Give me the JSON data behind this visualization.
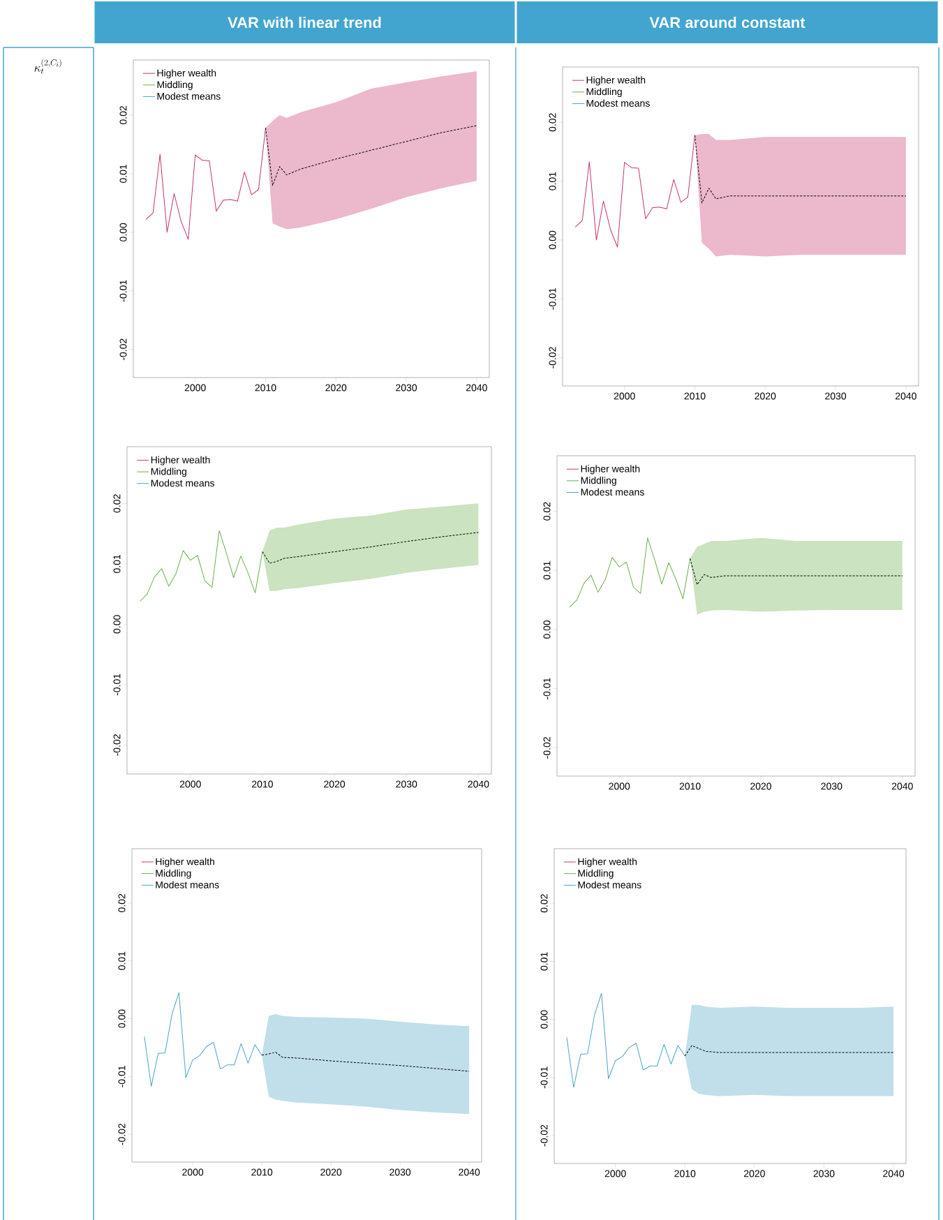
{
  "chart_data": [
    {
      "type": "line",
      "title": "VAR with linear trend",
      "ylabel": "\\kappa_t^{(2,C_i)}",
      "xlim": [
        1991.2,
        2041.8
      ],
      "ylim": [
        -0.0248,
        0.0294
      ],
      "xticks": [
        2000,
        2010,
        2020,
        2030,
        2040
      ],
      "yticks": [
        {
          "value": -0.02,
          "label": "-0.02"
        },
        {
          "value": -0.01,
          "label": "-0.01"
        },
        {
          "value": 0,
          "label": "0.00"
        },
        {
          "value": 0.01,
          "label": "0.01"
        },
        {
          "value": 0.02,
          "label": "0.02"
        }
      ],
      "legend": "top left",
      "series": [
        {
          "name": "Higher wealth",
          "color": "#c8336e",
          "x": [
            1993,
            1994,
            1995,
            1996,
            1997,
            1998,
            1999,
            2000,
            2001,
            2002,
            2003,
            2004,
            2005,
            2006,
            2007,
            2008,
            2009,
            2010,
            2011,
            2012,
            2013,
            2015,
            2020,
            2025,
            2030,
            2035,
            2040
          ],
          "values": [
            0.0022,
            0.0033,
            0.0133,
            0.0,
            0.0066,
            0.0018,
            -0.0012,
            0.0132,
            0.0123,
            0.0122,
            0.0036,
            0.0055,
            0.0056,
            0.0053,
            0.0103,
            0.0064,
            0.0073,
            0.0178,
            null,
            null,
            null,
            null,
            null,
            null,
            null,
            null,
            null
          ],
          "lower": [
            null,
            null,
            null,
            null,
            null,
            null,
            null,
            null,
            null,
            null,
            null,
            null,
            null,
            null,
            null,
            null,
            null,
            0.0178,
            0.0015,
            0.001,
            0.0005,
            0.0008,
            0.0022,
            0.004,
            0.006,
            0.0075,
            0.0088
          ],
          "upper": [
            null,
            null,
            null,
            null,
            null,
            null,
            null,
            null,
            null,
            null,
            null,
            null,
            null,
            null,
            null,
            null,
            null,
            0.0178,
            0.019,
            0.02,
            0.0195,
            0.0205,
            0.0222,
            0.0245,
            0.0256,
            0.0266,
            0.0275
          ]
        },
        {
          "name": "Middling",
          "color": "#6ab04c"
        },
        {
          "name": "Modest means",
          "color": "#4aa3c4"
        },
        {
          "type": "line",
          "color": "#000000",
          "line_style": "dashed",
          "x": [
            2010,
            2011,
            2012,
            2013,
            2015,
            2020,
            2025,
            2030,
            2035,
            2040
          ],
          "values": [
            0.0178,
            0.008,
            0.0112,
            0.0098,
            0.0108,
            0.0125,
            0.014,
            0.0155,
            0.017,
            0.0182
          ]
        }
      ]
    },
    {
      "type": "line",
      "title": "VAR around constant",
      "xlim": [
        1991.2,
        2041.8
      ],
      "ylim": [
        -0.0248,
        0.0294
      ],
      "xticks": [
        2000,
        2010,
        2020,
        2030,
        2040
      ],
      "yticks": [
        {
          "value": -0.02,
          "label": "-0.02"
        },
        {
          "value": -0.01,
          "label": "-0.01"
        },
        {
          "value": 0,
          "label": "0.00"
        },
        {
          "value": 0.01,
          "label": "0.01"
        },
        {
          "value": 0.02,
          "label": "0.02"
        }
      ],
      "legend": "top left",
      "series": [
        {
          "name": "Higher wealth",
          "color": "#c8336e",
          "x": [
            1993,
            1994,
            1995,
            1996,
            1997,
            1998,
            1999,
            2000,
            2001,
            2002,
            2003,
            2004,
            2005,
            2006,
            2007,
            2008,
            2009,
            2010,
            2011,
            2012,
            2013,
            2015,
            2020,
            2025,
            2030,
            2035,
            2040
          ],
          "values": [
            0.0022,
            0.0033,
            0.0133,
            0.0,
            0.0066,
            0.0018,
            -0.0012,
            0.0132,
            0.0123,
            0.0122,
            0.0036,
            0.0055,
            0.0056,
            0.0053,
            0.0103,
            0.0064,
            0.0073,
            0.0178,
            null,
            null,
            null,
            null,
            null,
            null,
            null,
            null,
            null
          ],
          "lower": [
            null,
            null,
            null,
            null,
            null,
            null,
            null,
            null,
            null,
            null,
            null,
            null,
            null,
            null,
            null,
            null,
            null,
            0.0178,
            -0.0005,
            -0.0015,
            -0.0028,
            -0.0025,
            -0.0028,
            -0.0025,
            -0.0025,
            -0.0025,
            -0.0025
          ],
          "upper": [
            null,
            null,
            null,
            null,
            null,
            null,
            null,
            null,
            null,
            null,
            null,
            null,
            null,
            null,
            null,
            null,
            null,
            0.0178,
            0.018,
            0.018,
            0.017,
            0.017,
            0.0175,
            0.0175,
            0.0175,
            0.0175,
            0.0175
          ]
        },
        {
          "name": "Middling",
          "color": "#6ab04c"
        },
        {
          "name": "Modest means",
          "color": "#4aa3c4"
        },
        {
          "type": "line",
          "color": "#000000",
          "line_style": "dashed",
          "x": [
            2010,
            2011,
            2012,
            2013,
            2015,
            2020,
            2025,
            2030,
            2035,
            2040
          ],
          "values": [
            0.0178,
            0.0063,
            0.0088,
            0.007,
            0.0075,
            0.0075,
            0.0075,
            0.0075,
            0.0075,
            0.0075
          ]
        }
      ]
    },
    {
      "type": "line",
      "xlim": [
        1991.2,
        2041.8
      ],
      "ylim": [
        -0.0248,
        0.0294
      ],
      "xticks": [
        2000,
        2010,
        2020,
        2030,
        2040
      ],
      "yticks": [
        {
          "value": -0.02,
          "label": "-0.02"
        },
        {
          "value": -0.01,
          "label": "-0.01"
        },
        {
          "value": 0,
          "label": "0.00"
        },
        {
          "value": 0.01,
          "label": "0.01"
        },
        {
          "value": 0.02,
          "label": "0.02"
        }
      ],
      "legend": "top left",
      "series": [
        {
          "name": "Higher wealth",
          "color": "#c8336e"
        },
        {
          "name": "Middling",
          "color": "#6ab04c",
          "x": [
            1993,
            1994,
            1995,
            1996,
            1997,
            1998,
            1999,
            2000,
            2001,
            2002,
            2003,
            2004,
            2005,
            2006,
            2007,
            2008,
            2009,
            2010,
            2011,
            2012,
            2013,
            2015,
            2020,
            2025,
            2030,
            2035,
            2040
          ],
          "values": [
            0.0038,
            0.005,
            0.0078,
            0.0092,
            0.0063,
            0.0084,
            0.0122,
            0.0106,
            0.0114,
            0.0072,
            0.0061,
            0.0155,
            0.0118,
            0.0077,
            0.0113,
            0.0085,
            0.0052,
            0.012,
            null,
            null,
            null,
            null,
            null,
            null,
            null,
            null,
            null
          ],
          "lower": [
            null,
            null,
            null,
            null,
            null,
            null,
            null,
            null,
            null,
            null,
            null,
            null,
            null,
            null,
            null,
            null,
            null,
            0.012,
            0.0055,
            0.0055,
            0.0058,
            0.006,
            0.0068,
            0.0075,
            0.0085,
            0.0092,
            0.0098
          ],
          "upper": [
            null,
            null,
            null,
            null,
            null,
            null,
            null,
            null,
            null,
            null,
            null,
            null,
            null,
            null,
            null,
            null,
            null,
            0.012,
            0.0155,
            0.016,
            0.016,
            0.0165,
            0.0175,
            0.018,
            0.019,
            0.0195,
            0.02
          ]
        },
        {
          "name": "Modest means",
          "color": "#4aa3c4"
        },
        {
          "type": "line",
          "color": "#000000",
          "line_style": "dashed",
          "x": [
            2010,
            2011,
            2012,
            2013,
            2015,
            2020,
            2025,
            2030,
            2035,
            2040
          ],
          "values": [
            0.012,
            0.0101,
            0.0104,
            0.0109,
            0.0112,
            0.012,
            0.0128,
            0.0137,
            0.0145,
            0.0152
          ]
        }
      ]
    },
    {
      "type": "line",
      "xlim": [
        1991.2,
        2041.8
      ],
      "ylim": [
        -0.0248,
        0.0294
      ],
      "xticks": [
        2000,
        2010,
        2020,
        2030,
        2040
      ],
      "yticks": [
        {
          "value": -0.02,
          "label": "-0.02"
        },
        {
          "value": -0.01,
          "label": "-0.01"
        },
        {
          "value": 0,
          "label": "0.00"
        },
        {
          "value": 0.01,
          "label": "0.01"
        },
        {
          "value": 0.02,
          "label": "0.02"
        }
      ],
      "legend": "top left",
      "series": [
        {
          "name": "Higher wealth",
          "color": "#c8336e"
        },
        {
          "name": "Middling",
          "color": "#6ab04c",
          "x": [
            1993,
            1994,
            1995,
            1996,
            1997,
            1998,
            1999,
            2000,
            2001,
            2002,
            2003,
            2004,
            2005,
            2006,
            2007,
            2008,
            2009,
            2010,
            2011,
            2012,
            2013,
            2015,
            2020,
            2025,
            2030,
            2035,
            2040
          ],
          "values": [
            0.0038,
            0.005,
            0.0078,
            0.0092,
            0.0063,
            0.0084,
            0.0122,
            0.0106,
            0.0114,
            0.0072,
            0.0061,
            0.0155,
            0.0118,
            0.0077,
            0.0113,
            0.0085,
            0.0052,
            0.012,
            null,
            null,
            null,
            null,
            null,
            null,
            null,
            null,
            null
          ],
          "lower": [
            null,
            null,
            null,
            null,
            null,
            null,
            null,
            null,
            null,
            null,
            null,
            null,
            null,
            null,
            null,
            null,
            null,
            0.012,
            0.0025,
            0.003,
            0.0032,
            0.0033,
            0.003,
            0.0032,
            0.0033,
            0.0033,
            0.0033
          ],
          "upper": [
            null,
            null,
            null,
            null,
            null,
            null,
            null,
            null,
            null,
            null,
            null,
            null,
            null,
            null,
            null,
            null,
            null,
            0.012,
            0.014,
            0.0145,
            0.015,
            0.015,
            0.0155,
            0.015,
            0.015,
            0.015,
            0.015
          ]
        },
        {
          "name": "Modest means",
          "color": "#4aa3c4"
        },
        {
          "type": "line",
          "color": "#000000",
          "line_style": "dashed",
          "x": [
            2010,
            2011,
            2012,
            2013,
            2015,
            2020,
            2025,
            2030,
            2035,
            2040
          ],
          "values": [
            0.012,
            0.0076,
            0.0093,
            0.0088,
            0.0091,
            0.0091,
            0.0091,
            0.0091,
            0.0091,
            0.0091
          ]
        }
      ]
    },
    {
      "type": "line",
      "xlim": [
        1991.2,
        2041.8
      ],
      "ylim": [
        -0.0248,
        0.0294
      ],
      "xticks": [
        2000,
        2010,
        2020,
        2030,
        2040
      ],
      "yticks": [
        {
          "value": -0.02,
          "label": "-0.02"
        },
        {
          "value": -0.01,
          "label": "-0.01"
        },
        {
          "value": 0,
          "label": "0.00"
        },
        {
          "value": 0.01,
          "label": "0.01"
        },
        {
          "value": 0.02,
          "label": "0.02"
        }
      ],
      "legend": "top left",
      "series": [
        {
          "name": "Higher wealth",
          "color": "#c8336e"
        },
        {
          "name": "Middling",
          "color": "#6ab04c"
        },
        {
          "name": "Modest means",
          "color": "#4aa3c4",
          "x": [
            1993,
            1994,
            1995,
            1996,
            1997,
            1998,
            1999,
            2000,
            2001,
            2002,
            2003,
            2004,
            2005,
            2006,
            2007,
            2008,
            2009,
            2010,
            2011,
            2012,
            2013,
            2015,
            2020,
            2025,
            2030,
            2035,
            2040
          ],
          "values": [
            -0.0031,
            -0.0117,
            -0.006,
            -0.0059,
            0.0008,
            0.0045,
            -0.0102,
            -0.0071,
            -0.0064,
            -0.0048,
            -0.0041,
            -0.0087,
            -0.008,
            -0.008,
            -0.0043,
            -0.0077,
            -0.0045,
            -0.0063,
            null,
            null,
            null,
            null,
            null,
            null,
            null,
            null,
            null
          ],
          "lower": [
            null,
            null,
            null,
            null,
            null,
            null,
            null,
            null,
            null,
            null,
            null,
            null,
            null,
            null,
            null,
            null,
            null,
            -0.0063,
            -0.0135,
            -0.014,
            -0.0142,
            -0.0145,
            -0.0148,
            -0.0152,
            -0.0158,
            -0.0162,
            -0.0165
          ],
          "upper": [
            null,
            null,
            null,
            null,
            null,
            null,
            null,
            null,
            null,
            null,
            null,
            null,
            null,
            null,
            null,
            null,
            null,
            -0.0063,
            0.0005,
            0.0008,
            0.0005,
            0.0003,
            0.0002,
            0.0,
            -0.0005,
            -0.001,
            -0.0013
          ]
        },
        {
          "type": "line",
          "color": "#000000",
          "line_style": "dashed",
          "x": [
            2010,
            2011,
            2012,
            2013,
            2015,
            2020,
            2025,
            2030,
            2035,
            2040
          ],
          "values": [
            -0.0063,
            -0.0061,
            -0.0058,
            -0.0067,
            -0.0068,
            -0.0073,
            -0.0077,
            -0.0081,
            -0.0086,
            -0.0091
          ]
        }
      ]
    },
    {
      "type": "line",
      "xlim": [
        1991.2,
        2041.8
      ],
      "ylim": [
        -0.0248,
        0.0294
      ],
      "xticks": [
        2000,
        2010,
        2020,
        2030,
        2040
      ],
      "yticks": [
        {
          "value": -0.02,
          "label": "-0.02"
        },
        {
          "value": -0.01,
          "label": "-0.01"
        },
        {
          "value": 0,
          "label": "0.00"
        },
        {
          "value": 0.01,
          "label": "0.01"
        },
        {
          "value": 0.02,
          "label": "0.02"
        }
      ],
      "legend": "top left",
      "series": [
        {
          "name": "Higher wealth",
          "color": "#c8336e"
        },
        {
          "name": "Middling",
          "color": "#6ab04c"
        },
        {
          "name": "Modest means",
          "color": "#4aa3c4",
          "x": [
            1993,
            1994,
            1995,
            1996,
            1997,
            1998,
            1999,
            2000,
            2001,
            2002,
            2003,
            2004,
            2005,
            2006,
            2007,
            2008,
            2009,
            2010,
            2011,
            2012,
            2013,
            2015,
            2020,
            2025,
            2030,
            2035,
            2040
          ],
          "values": [
            -0.0031,
            -0.0117,
            -0.006,
            -0.0059,
            0.0008,
            0.0045,
            -0.0102,
            -0.0071,
            -0.0064,
            -0.0048,
            -0.0041,
            -0.0087,
            -0.008,
            -0.008,
            -0.0043,
            -0.0077,
            -0.0045,
            -0.0063,
            null,
            null,
            null,
            null,
            null,
            null,
            null,
            null,
            null
          ],
          "lower": [
            null,
            null,
            null,
            null,
            null,
            null,
            null,
            null,
            null,
            null,
            null,
            null,
            null,
            null,
            null,
            null,
            null,
            -0.0063,
            -0.012,
            -0.0128,
            -0.013,
            -0.0132,
            -0.013,
            -0.0132,
            -0.0132,
            -0.0132,
            -0.0132
          ],
          "upper": [
            null,
            null,
            null,
            null,
            null,
            null,
            null,
            null,
            null,
            null,
            null,
            null,
            null,
            null,
            null,
            null,
            null,
            -0.0063,
            0.0025,
            0.0025,
            0.0022,
            0.002,
            0.0022,
            0.002,
            0.002,
            0.002,
            0.0022
          ]
        },
        {
          "type": "line",
          "color": "#000000",
          "line_style": "dashed",
          "x": [
            2010,
            2011,
            2012,
            2013,
            2015,
            2020,
            2025,
            2030,
            2035,
            2040
          ],
          "values": [
            -0.0063,
            -0.0045,
            -0.005,
            -0.0055,
            -0.0057,
            -0.0057,
            -0.0057,
            -0.0057,
            -0.0057,
            -0.0057
          ]
        }
      ]
    }
  ]
}
